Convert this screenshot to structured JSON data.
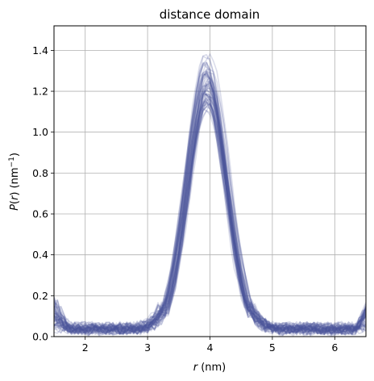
{
  "chart_data": {
    "type": "line",
    "title": "distance domain",
    "xlabel": "r (nm)",
    "ylabel": "P(r) (nm⁻¹)",
    "xlim": [
      1.5,
      6.5
    ],
    "ylim": [
      0,
      1.52
    ],
    "xticks": [
      2,
      3,
      4,
      5,
      6
    ],
    "xtick_labels": [
      "2",
      "3",
      "4",
      "5",
      "6"
    ],
    "yticks": [
      0.0,
      0.2,
      0.4,
      0.6,
      0.8,
      1.0,
      1.2,
      1.4
    ],
    "ytick_labels": [
      "0.0",
      "0.2",
      "0.4",
      "0.6",
      "0.8",
      "1.0",
      "1.2",
      "1.4"
    ],
    "grid": true,
    "legend": "none",
    "line_color": "#4a5599",
    "line_alpha": 0.2,
    "ensemble_size": 60,
    "peak": {
      "center": 3.95,
      "amplitude": 1.25,
      "width_sigma": 0.32
    },
    "baseline_noise": 0.03,
    "series": [
      {
        "x": [
          1.5,
          1.75,
          2.0,
          2.25,
          2.5,
          2.75,
          3.0,
          3.2,
          3.4,
          3.6,
          3.8,
          3.9,
          4.0,
          4.2,
          4.4,
          4.6,
          4.8,
          5.0,
          5.5,
          6.0,
          6.5
        ],
        "values": [
          0.07,
          0.05,
          0.04,
          0.04,
          0.03,
          0.03,
          0.04,
          0.1,
          0.35,
          0.75,
          1.13,
          1.22,
          1.24,
          0.95,
          0.45,
          0.1,
          0.03,
          0.02,
          0.02,
          0.02,
          0.04
        ]
      }
    ]
  }
}
